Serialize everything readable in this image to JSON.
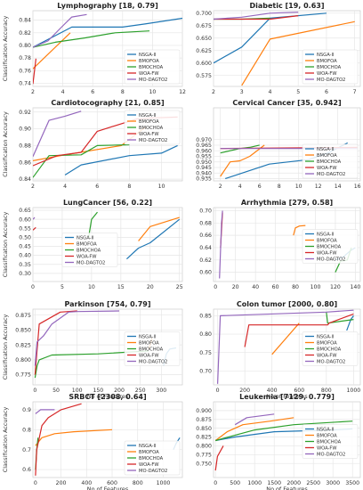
{
  "figure": {
    "series_names": [
      "NSGA-II",
      "BMOFOA",
      "BMOCHOA",
      "WOA-FW",
      "MO-DAGTO2"
    ],
    "colors": [
      "#1f77b4",
      "#ff7f0e",
      "#2ca02c",
      "#d62728",
      "#9467bd"
    ],
    "ylabel": "Classification Accuracy",
    "xlabel": "No of Features"
  },
  "chart_data": [
    {
      "type": "line",
      "title": "Lymphography [18, 0.79]",
      "xlim": [
        2,
        12
      ],
      "ylim": [
        0.735,
        0.855
      ],
      "xticks": [
        2,
        4,
        6,
        8,
        10,
        12
      ],
      "yticks": [
        0.74,
        0.76,
        0.78,
        0.8,
        0.82,
        0.84
      ],
      "xlabel": "",
      "ylabel": "Classification Accuracy",
      "legend_position": "lower-right",
      "series": [
        {
          "name": "NSGA-II",
          "x": [
            2,
            4.6,
            8,
            9.5,
            12
          ],
          "y": [
            0.797,
            0.829,
            0.829,
            0.834,
            0.843
          ]
        },
        {
          "name": "BMOFOA",
          "x": [
            2,
            4.5
          ],
          "y": [
            0.763,
            0.82
          ]
        },
        {
          "name": "BMOCHOA",
          "x": [
            2,
            3.5,
            5.5,
            7.5,
            9.8
          ],
          "y": [
            0.797,
            0.805,
            0.812,
            0.82,
            0.823
          ]
        },
        {
          "name": "WOA-FW",
          "x": [
            2,
            2.2
          ],
          "y": [
            0.739,
            0.779
          ]
        },
        {
          "name": "MO-DAGTO2",
          "x": [
            2,
            3,
            4,
            4.6,
            5.6
          ],
          "y": [
            0.797,
            0.807,
            0.831,
            0.845,
            0.849
          ]
        }
      ]
    },
    {
      "type": "line",
      "title": "Diabetic [19, 0.63]",
      "xlim": [
        2,
        7.2
      ],
      "ylim": [
        0.553,
        0.705
      ],
      "xticks": [
        2,
        3,
        4,
        5,
        6,
        7
      ],
      "yticks": [
        0.575,
        0.6,
        0.625,
        0.65,
        0.675,
        0.7
      ],
      "xlabel": "",
      "ylabel": "",
      "legend_position": "lower-right",
      "series": [
        {
          "name": "NSGA-II",
          "x": [
            2,
            3,
            4,
            6
          ],
          "y": [
            0.6,
            0.632,
            0.69,
            0.7
          ]
        },
        {
          "name": "BMOFOA",
          "x": [
            3,
            4,
            7
          ],
          "y": [
            0.555,
            0.648,
            0.683
          ]
        },
        {
          "name": "BMOCHOA",
          "x": [
            2,
            3,
            4
          ],
          "y": [
            0.688,
            0.688,
            0.69
          ]
        },
        {
          "name": "WOA-FW",
          "x": [
            2,
            4,
            5
          ],
          "y": [
            0.688,
            0.688,
            0.695
          ]
        },
        {
          "name": "MO-DAGTO2",
          "x": [
            2,
            3,
            4,
            5
          ],
          "y": [
            0.688,
            0.692,
            0.7,
            0.702
          ]
        }
      ]
    },
    {
      "type": "line",
      "title": "Cardiotocography [21, 0.85]",
      "xlim": [
        2,
        11.3
      ],
      "ylim": [
        0.838,
        0.925
      ],
      "xticks": [
        2,
        4,
        6,
        8,
        10
      ],
      "yticks": [
        0.84,
        0.86,
        0.88,
        0.9,
        0.92
      ],
      "xlabel": "",
      "ylabel": "Classification Accuracy",
      "legend_position": "upper-right",
      "series": [
        {
          "name": "NSGA-II",
          "x": [
            4,
            5,
            8,
            10,
            11
          ],
          "y": [
            0.845,
            0.857,
            0.868,
            0.871,
            0.88
          ]
        },
        {
          "name": "BMOFOA",
          "x": [
            2,
            4,
            7.5,
            9
          ],
          "y": [
            0.862,
            0.869,
            0.88,
            0.902
          ]
        },
        {
          "name": "BMOCHOA",
          "x": [
            2,
            3,
            5,
            6,
            8
          ],
          "y": [
            0.842,
            0.868,
            0.869,
            0.88,
            0.881
          ]
        },
        {
          "name": "WOA-FW",
          "x": [
            2,
            3.5,
            5,
            6,
            8.5,
            9.5,
            11
          ],
          "y": [
            0.856,
            0.868,
            0.872,
            0.897,
            0.912,
            0.913,
            0.914
          ]
        },
        {
          "name": "MO-DAGTO2",
          "x": [
            2,
            3,
            4,
            5
          ],
          "y": [
            0.867,
            0.91,
            0.915,
            0.921
          ]
        }
      ]
    },
    {
      "type": "line",
      "title": "Cervical Cancer [35, 0.942]",
      "xlim": [
        1.3,
        16.3
      ],
      "ylim": [
        0.933,
        0.9985
      ],
      "xticks": [
        2,
        4,
        6,
        8,
        10,
        12,
        14,
        16
      ],
      "yticks": [
        0.935,
        0.94,
        0.945,
        0.95,
        0.955,
        0.96,
        0.965,
        0.97
      ],
      "ytick_labels": [
        "0.935",
        "0.940",
        "0.945",
        "0.950",
        "0.955",
        "0.960",
        "0.965",
        "0.970"
      ],
      "ylabel_visible_ticks": [
        0.935,
        0.94,
        0.945,
        0.95,
        0.955,
        0.96,
        0.965
      ],
      "xlabel": "",
      "ylabel": "",
      "legend_position": "lower-right",
      "series": [
        {
          "name": "NSGA-II",
          "x": [
            2.5,
            7,
            9,
            11,
            13,
            15
          ],
          "y": [
            0.935,
            0.948,
            0.95,
            0.952,
            0.958,
            0.967
          ]
        },
        {
          "name": "BMOFOA",
          "x": [
            2,
            3,
            4,
            5,
            6.5
          ],
          "y": [
            0.937,
            0.95,
            0.951,
            0.955,
            0.965
          ]
        },
        {
          "name": "BMOCHOA",
          "x": [
            2,
            4,
            5,
            6
          ],
          "y": [
            0.958,
            0.962,
            0.963,
            0.965
          ]
        },
        {
          "name": "WOA-FW",
          "x": [
            2,
            16
          ],
          "y": [
            0.962,
            0.963
          ]
        },
        {
          "name": "MO-DAGTO2",
          "x": [
            2,
            16
          ],
          "y": [
            0.962,
            0.962
          ]
        }
      ]
    },
    {
      "type": "line",
      "title": "LungCancer [56, 0.22]",
      "xlim": [
        0,
        25.5
      ],
      "ylim": [
        0.255,
        0.665
      ],
      "xticks": [
        0,
        5,
        10,
        15,
        20,
        25
      ],
      "yticks": [
        0.3,
        0.35,
        0.4,
        0.45,
        0.5,
        0.55,
        0.6,
        0.65
      ],
      "xlabel": "",
      "ylabel": "Classification Accuracy",
      "legend_position": "center",
      "series": [
        {
          "name": "NSGA-II",
          "x": [
            16,
            17,
            18,
            20,
            25
          ],
          "y": [
            0.38,
            0.41,
            0.44,
            0.47,
            0.6
          ]
        },
        {
          "name": "BMOFOA",
          "x": [
            18,
            20,
            25
          ],
          "y": [
            0.48,
            0.56,
            0.61
          ]
        },
        {
          "name": "BMOCHOA",
          "x": [
            9.5,
            10,
            11
          ],
          "y": [
            0.5,
            0.6,
            0.64
          ]
        },
        {
          "name": "WOA-FW",
          "x": [
            0,
            0.5
          ],
          "y": [
            0.54,
            0.555
          ]
        },
        {
          "name": "MO-DAGTO2",
          "x": [
            0,
            0.3
          ],
          "y": [
            0.6,
            0.61
          ]
        }
      ]
    },
    {
      "type": "line",
      "title": "Arrhythmia [279, 0.58]",
      "xlim": [
        -2,
        145
      ],
      "ylim": [
        0.585,
        0.705
      ],
      "xticks": [
        0,
        20,
        40,
        60,
        80,
        100,
        120,
        140
      ],
      "yticks": [
        0.6,
        0.62,
        0.64,
        0.66,
        0.68,
        0.7
      ],
      "xlabel": "",
      "ylabel": "",
      "legend_position": "right",
      "series": [
        {
          "name": "NSGA-II",
          "x": [
            120,
            128,
            135,
            140
          ],
          "y": [
            0.62,
            0.625,
            0.635,
            0.64
          ]
        },
        {
          "name": "BMOFOA",
          "x": [
            78,
            80,
            84,
            90
          ],
          "y": [
            0.66,
            0.672,
            0.675,
            0.676
          ]
        },
        {
          "name": "BMOCHOA",
          "x": [
            120,
            125,
            132,
            136
          ],
          "y": [
            0.6,
            0.618,
            0.62,
            0.64
          ]
        },
        {
          "name": "WOA-FW",
          "x": [
            5,
            7
          ],
          "y": [
            0.64,
            0.697
          ]
        },
        {
          "name": "MO-DAGTO2",
          "x": [
            4,
            6,
            7
          ],
          "y": [
            0.59,
            0.68,
            0.7
          ]
        }
      ]
    },
    {
      "type": "line",
      "title": "Parkinson [754, 0.79]",
      "xlim": [
        -5,
        350
      ],
      "ylim": [
        0.758,
        0.885
      ],
      "xticks": [
        0,
        50,
        100,
        150,
        200,
        250,
        300
      ],
      "yticks": [
        0.775,
        0.8,
        0.825,
        0.85,
        0.875
      ],
      "xlabel": "No of Features",
      "ylabel": "Classification Accuracy",
      "legend_position": "center-right",
      "series": [
        {
          "name": "NSGA-II",
          "x": [
            305,
            312,
            320,
            335
          ],
          "y": [
            0.79,
            0.81,
            0.818,
            0.82
          ]
        },
        {
          "name": "BMOFOA",
          "x": [
            270,
            275,
            278
          ],
          "y": [
            0.818,
            0.828,
            0.836
          ]
        },
        {
          "name": "BMOCHOA",
          "x": [
            0,
            5,
            10,
            40,
            150,
            270
          ],
          "y": [
            0.77,
            0.79,
            0.8,
            0.808,
            0.81,
            0.815
          ]
        },
        {
          "name": "WOA-FW",
          "x": [
            0,
            10,
            60,
            100
          ],
          "y": [
            0.775,
            0.86,
            0.88,
            0.882
          ]
        },
        {
          "name": "MO-DAGTO2",
          "x": [
            0,
            5,
            20,
            30,
            40,
            60,
            80,
            100,
            200
          ],
          "y": [
            0.79,
            0.83,
            0.84,
            0.85,
            0.86,
            0.87,
            0.88,
            0.881,
            0.882
          ]
        }
      ]
    },
    {
      "type": "line",
      "title": "Colon tumor [2000, 0.80]",
      "xlim": [
        -30,
        1050
      ],
      "ylim": [
        0.662,
        0.868
      ],
      "xticks": [
        0,
        200,
        400,
        600,
        800,
        1000
      ],
      "yticks": [
        0.7,
        0.75,
        0.8,
        0.85
      ],
      "xlabel": "No of Features",
      "ylabel": "",
      "legend_position": "center-right",
      "series": [
        {
          "name": "NSGA-II",
          "x": [
            950,
            980,
            1000
          ],
          "y": [
            0.81,
            0.84,
            0.85
          ]
        },
        {
          "name": "BMOFOA",
          "x": [
            400,
            600
          ],
          "y": [
            0.745,
            0.83
          ]
        },
        {
          "name": "BMOCHOA",
          "x": [
            800,
            810,
            1000
          ],
          "y": [
            0.86,
            0.83,
            0.84
          ]
        },
        {
          "name": "WOA-FW",
          "x": [
            200,
            230,
            810,
            820,
            1000
          ],
          "y": [
            0.765,
            0.825,
            0.825,
            0.83,
            0.855
          ]
        },
        {
          "name": "MO-DAGTO2",
          "x": [
            0,
            20,
            800,
            1000
          ],
          "y": [
            0.665,
            0.85,
            0.86,
            0.865
          ]
        }
      ]
    },
    {
      "type": "line",
      "title": "SRBCT [2308, 0.64]",
      "xlim": [
        -20,
        1150
      ],
      "ylim": [
        0.56,
        0.94
      ],
      "xticks": [
        0,
        200,
        400,
        600,
        800,
        1000
      ],
      "yticks": [
        0.6,
        0.7,
        0.8,
        0.9
      ],
      "xlabel": "No of Features",
      "ylabel": "Classification Accuracy",
      "legend_position": "lower-right",
      "series": [
        {
          "name": "NSGA-II",
          "x": [
            1080,
            1100,
            1130
          ],
          "y": [
            0.7,
            0.73,
            0.76
          ]
        },
        {
          "name": "BMOFOA",
          "x": [
            0,
            50,
            150,
            300,
            600
          ],
          "y": [
            0.72,
            0.76,
            0.78,
            0.79,
            0.8
          ]
        },
        {
          "name": "BMOCHOA",
          "x": [
            0,
            5,
            10,
            20
          ],
          "y": [
            0.6,
            0.65,
            0.7,
            0.76
          ]
        },
        {
          "name": "WOA-FW",
          "x": [
            0,
            10,
            50,
            100,
            200,
            360
          ],
          "y": [
            0.57,
            0.7,
            0.82,
            0.86,
            0.9,
            0.93
          ]
        },
        {
          "name": "MO-DAGTO2",
          "x": [
            0,
            20,
            40,
            150
          ],
          "y": [
            0.88,
            0.89,
            0.9,
            0.9
          ]
        }
      ]
    },
    {
      "type": "line",
      "title": "Leukemia [7129, 0.779]",
      "xlim": [
        -50,
        3700
      ],
      "ylim": [
        0.71,
        0.925
      ],
      "xticks": [
        0,
        500,
        1000,
        1500,
        2000,
        2500,
        3000,
        3500
      ],
      "yticks": [
        0.75,
        0.775,
        0.8,
        0.825,
        0.85,
        0.875,
        0.9
      ],
      "xlabel": "No of Features",
      "ylabel": "",
      "legend_position": "center-right",
      "series": [
        {
          "name": "NSGA-II",
          "x": [
            0,
            500,
            1500,
            3000,
            3500
          ],
          "y": [
            0.815,
            0.825,
            0.84,
            0.845,
            0.848
          ]
        },
        {
          "name": "BMOFOA",
          "x": [
            0,
            300,
            700,
            1400,
            2000
          ],
          "y": [
            0.815,
            0.84,
            0.86,
            0.87,
            0.88
          ]
        },
        {
          "name": "BMOCHOA",
          "x": [
            0,
            1000,
            2000,
            3500
          ],
          "y": [
            0.815,
            0.845,
            0.86,
            0.87
          ]
        },
        {
          "name": "WOA-FW",
          "x": [
            0,
            50,
            200
          ],
          "y": [
            0.73,
            0.77,
            0.8
          ]
        },
        {
          "name": "MO-DAGTO2",
          "x": [
            500,
            800,
            1500
          ],
          "y": [
            0.86,
            0.88,
            0.89
          ]
        }
      ]
    }
  ]
}
